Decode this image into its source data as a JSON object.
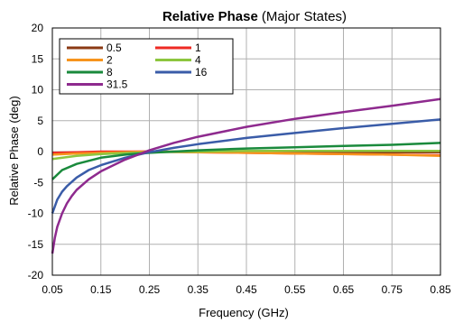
{
  "chart_data": {
    "type": "line",
    "title": "Relative Phase",
    "subtitle": "(Major States)",
    "xlabel": "Frequency (GHz)",
    "ylabel": "Relative Phase (deg)",
    "xlim": [
      0.05,
      0.85
    ],
    "ylim": [
      -20,
      20
    ],
    "x_ticks": [
      "0.05",
      "0.15",
      "0.25",
      "0.35",
      "0.45",
      "0.55",
      "0.65",
      "0.75",
      "0.85"
    ],
    "y_ticks": [
      "20",
      "15",
      "10",
      "5",
      "0",
      "-5",
      "-10",
      "-15",
      "-20"
    ],
    "grid": true,
    "legend_position": "top-left",
    "series": [
      {
        "name": "0.5",
        "color": "#8b3a14",
        "x": [
          0.05,
          0.1,
          0.15,
          0.25,
          0.35,
          0.45,
          0.55,
          0.65,
          0.75,
          0.85
        ],
        "y": [
          -0.3,
          -0.2,
          -0.1,
          0.0,
          0.0,
          0.0,
          0.0,
          -0.1,
          -0.1,
          -0.1
        ]
      },
      {
        "name": "1",
        "color": "#ee2a24",
        "x": [
          0.05,
          0.1,
          0.15,
          0.25,
          0.35,
          0.45,
          0.55,
          0.65,
          0.75,
          0.85
        ],
        "y": [
          -0.2,
          -0.1,
          0.0,
          0.0,
          -0.1,
          -0.2,
          -0.3,
          -0.4,
          -0.5,
          -0.6
        ]
      },
      {
        "name": "2",
        "color": "#f7941d",
        "x": [
          0.05,
          0.1,
          0.15,
          0.25,
          0.35,
          0.45,
          0.55,
          0.65,
          0.75,
          0.85
        ],
        "y": [
          -0.5,
          -0.3,
          -0.2,
          0.0,
          -0.1,
          -0.2,
          -0.3,
          -0.4,
          -0.5,
          -0.7
        ]
      },
      {
        "name": "4",
        "color": "#8dc63f",
        "x": [
          0.05,
          0.1,
          0.15,
          0.25,
          0.35,
          0.45,
          0.55,
          0.65,
          0.75,
          0.85
        ],
        "y": [
          -1.2,
          -0.7,
          -0.4,
          -0.1,
          0.0,
          0.1,
          0.1,
          0.1,
          0.1,
          0.1
        ]
      },
      {
        "name": "8",
        "color": "#1a8a3c",
        "x": [
          0.05,
          0.07,
          0.1,
          0.15,
          0.2,
          0.25,
          0.35,
          0.45,
          0.55,
          0.65,
          0.75,
          0.85
        ],
        "y": [
          -4.5,
          -3.0,
          -2.0,
          -1.0,
          -0.5,
          -0.2,
          0.2,
          0.5,
          0.7,
          0.9,
          1.1,
          1.4
        ]
      },
      {
        "name": "16",
        "color": "#3a5ca8",
        "x": [
          0.05,
          0.06,
          0.07,
          0.08,
          0.1,
          0.125,
          0.15,
          0.2,
          0.25,
          0.3,
          0.35,
          0.45,
          0.55,
          0.65,
          0.75,
          0.85
        ],
        "y": [
          -10.0,
          -7.8,
          -6.5,
          -5.6,
          -4.2,
          -3.0,
          -2.2,
          -1.0,
          -0.1,
          0.6,
          1.2,
          2.2,
          3.0,
          3.8,
          4.5,
          5.2
        ]
      },
      {
        "name": "31.5",
        "color": "#8e2a8e",
        "x": [
          0.05,
          0.055,
          0.06,
          0.07,
          0.08,
          0.09,
          0.1,
          0.125,
          0.15,
          0.2,
          0.25,
          0.3,
          0.35,
          0.45,
          0.55,
          0.65,
          0.75,
          0.85
        ],
        "y": [
          -16.5,
          -14.0,
          -12.2,
          -10.0,
          -8.4,
          -7.2,
          -6.2,
          -4.5,
          -3.2,
          -1.3,
          0.2,
          1.4,
          2.4,
          4.0,
          5.3,
          6.4,
          7.4,
          8.5
        ]
      }
    ]
  }
}
